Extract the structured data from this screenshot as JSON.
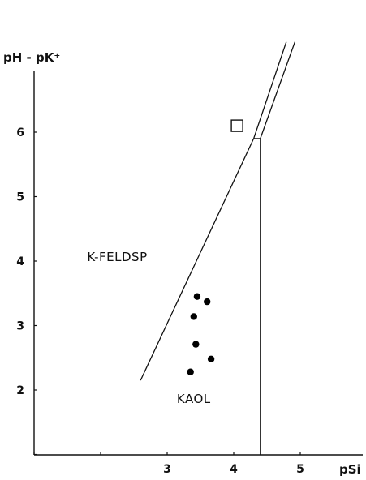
{
  "chart_data": {
    "type": "scatter",
    "title": "",
    "xlabel": "pSi",
    "ylabel": "pH - pK⁺",
    "x_ticks": [
      {
        "value": 1,
        "label": ""
      },
      {
        "value": 2,
        "label": ""
      },
      {
        "value": 3,
        "label": "3"
      },
      {
        "value": 4,
        "label": "4"
      },
      {
        "value": 5,
        "label": "5"
      }
    ],
    "y_ticks": [
      {
        "value": 1,
        "label": ""
      },
      {
        "value": 2,
        "label": "2"
      },
      {
        "value": 3,
        "label": "3"
      },
      {
        "value": 4,
        "label": "4"
      },
      {
        "value": 5,
        "label": "5"
      },
      {
        "value": 6,
        "label": "6"
      }
    ],
    "xlim": [
      0.5,
      5.8
    ],
    "ylim": [
      1.0,
      7.2
    ],
    "grid": false,
    "region_labels": [
      {
        "text": "K-FELDSP",
        "x": 2.25,
        "y": 4.0
      },
      {
        "text": "KAOL",
        "x": 3.4,
        "y": 1.8
      }
    ],
    "boundaries": [
      {
        "name": "kfeldsp-kaol",
        "points": [
          [
            2.6,
            2.15
          ],
          [
            4.3,
            5.9
          ]
        ]
      },
      {
        "name": "upper-left",
        "points": [
          [
            4.3,
            5.9
          ],
          [
            4.79,
            7.4
          ]
        ]
      },
      {
        "name": "upper-right",
        "points": [
          [
            4.4,
            5.9
          ],
          [
            4.92,
            7.4
          ]
        ]
      },
      {
        "name": "silica-saturation",
        "points": [
          [
            4.4,
            1.0
          ],
          [
            4.4,
            5.9
          ]
        ]
      },
      {
        "name": "junction",
        "points": [
          [
            4.3,
            5.9
          ],
          [
            4.4,
            5.9
          ]
        ]
      }
    ],
    "points": [
      {
        "x": 3.45,
        "y": 3.45
      },
      {
        "x": 3.6,
        "y": 3.37
      },
      {
        "x": 3.4,
        "y": 3.14
      },
      {
        "x": 3.43,
        "y": 2.71
      },
      {
        "x": 3.66,
        "y": 2.48
      },
      {
        "x": 3.35,
        "y": 2.28
      }
    ],
    "square_marker": {
      "x": 4.05,
      "y": 6.1
    }
  }
}
